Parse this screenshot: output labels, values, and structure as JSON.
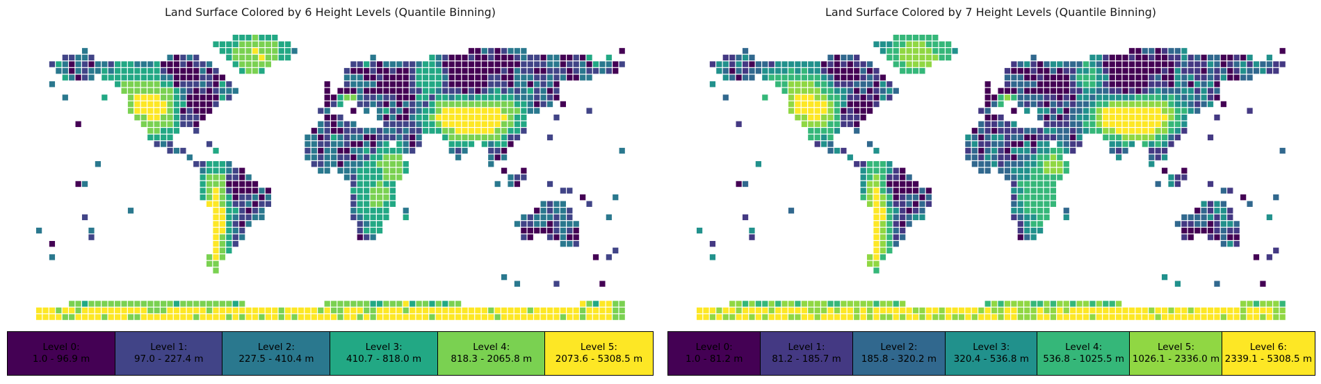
{
  "chart_data": [
    {
      "type": "heatmap",
      "title": "Land Surface Colored by 6 Height Levels (Quantile Binning)",
      "units": "m",
      "legend": [
        {
          "label": "Level 0:",
          "range": "1.0 - 96.9 m",
          "color": "#440154"
        },
        {
          "label": "Level 1:",
          "range": "97.0 - 227.4 m",
          "color": "#414487"
        },
        {
          "label": "Level 2:",
          "range": "227.5 - 410.4 m",
          "color": "#2a788e"
        },
        {
          "label": "Level 3:",
          "range": "410.7 - 818.0 m",
          "color": "#22a884"
        },
        {
          "label": "Level 4:",
          "range": "818.3 - 2065.8 m",
          "color": "#7ad151"
        },
        {
          "label": "Level 5:",
          "range": "2073.6 - 5308.5 m",
          "color": "#fde725"
        }
      ]
    },
    {
      "type": "heatmap",
      "title": "Land Surface Colored by 7 Height Levels (Quantile Binning)",
      "units": "m",
      "legend": [
        {
          "label": "Level 0:",
          "range": "1.0 - 81.2 m",
          "color": "#440154"
        },
        {
          "label": "Level 1:",
          "range": "81.2 - 185.7 m",
          "color": "#443983"
        },
        {
          "label": "Level 2:",
          "range": "185.8 - 320.2 m",
          "color": "#31688e"
        },
        {
          "label": "Level 3:",
          "range": "320.4 - 536.8 m",
          "color": "#21918c"
        },
        {
          "label": "Level 4:",
          "range": "536.8 - 1025.5 m",
          "color": "#35b779"
        },
        {
          "label": "Level 5:",
          "range": "1026.1 - 2336.0 m",
          "color": "#90d743"
        },
        {
          "label": "Level 6:",
          "range": "2339.1 - 5308.5 m",
          "color": "#fde725"
        }
      ]
    }
  ]
}
